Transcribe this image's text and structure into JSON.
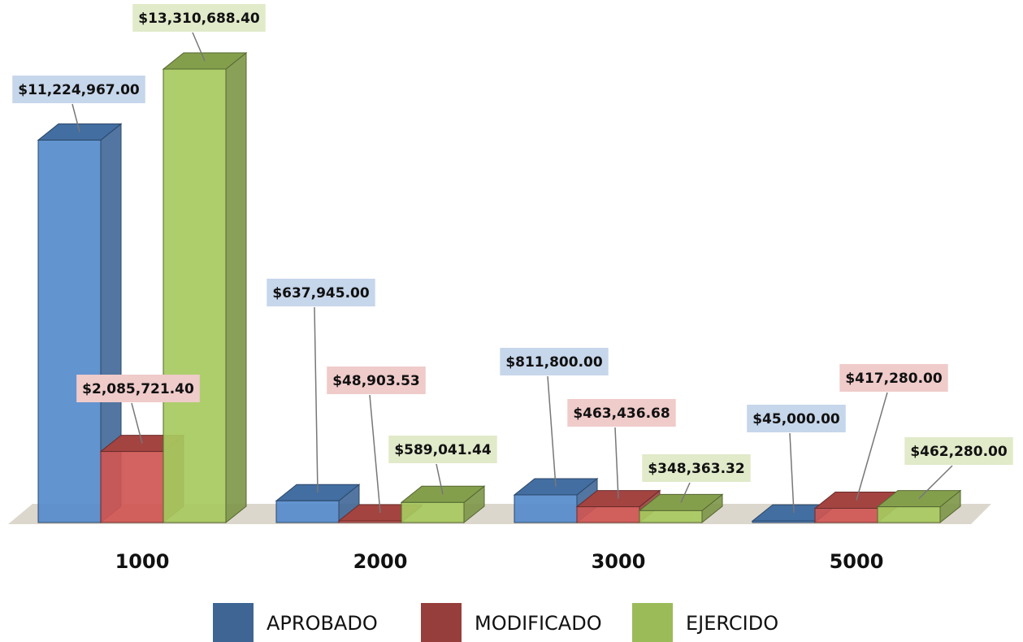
{
  "chart_data": {
    "type": "bar3d",
    "categories": [
      "1000",
      "2000",
      "3000",
      "5000"
    ],
    "series": [
      {
        "name": "APROBADO",
        "color": "#4f81bd",
        "values": [
          11224967,
          637945,
          811800,
          45000
        ],
        "value_labels": [
          "$11,224,967.00",
          "$637,945.00",
          "$811,800.00",
          "$45,000.00"
        ]
      },
      {
        "name": "MODIFICADO",
        "color": "#c0504d",
        "values": [
          2085721.4,
          48903.53,
          463436.68,
          417280
        ],
        "value_labels": [
          "$2,085,721.40",
          "$48,903.53",
          "$463,436.68",
          "$417,280.00"
        ]
      },
      {
        "name": "EJERCIDO",
        "color": "#9bbb59",
        "values": [
          13310688.4,
          589041.44,
          348363.32,
          462280
        ],
        "value_labels": [
          "$13,310,688.40",
          "$589,041.44",
          "$348,363.32",
          "$462,280.00"
        ]
      }
    ]
  }
}
